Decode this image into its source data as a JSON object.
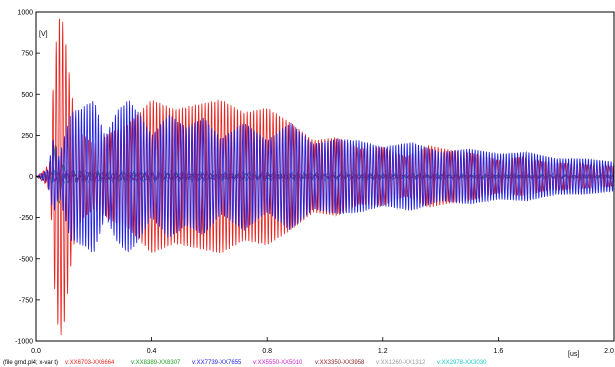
{
  "chart_data": {
    "type": "line",
    "ylabel": "[V]",
    "xlabel": "[us]",
    "xlim": [
      0,
      2
    ],
    "ylim": [
      -1000,
      1000
    ],
    "grid": false,
    "legend_position": "bottom",
    "x_ticks": [
      {
        "value": 0.0,
        "label": "0.0"
      },
      {
        "value": 0.4,
        "label": "0.4"
      },
      {
        "value": 0.8,
        "label": "0.8"
      },
      {
        "value": 1.2,
        "label": "1.2"
      },
      {
        "value": 1.6,
        "label": "1.6"
      },
      {
        "value": 2.0,
        "label": "2.0"
      }
    ],
    "y_ticks": [
      {
        "value": 1000,
        "label": "1000"
      },
      {
        "value": 750,
        "label": "750"
      },
      {
        "value": 500,
        "label": "500"
      },
      {
        "value": 250,
        "label": "250"
      },
      {
        "value": 0,
        "label": "0"
      },
      {
        "value": -250,
        "label": "-250"
      },
      {
        "value": -500,
        "label": "-500"
      },
      {
        "value": -750,
        "label": "-750"
      },
      {
        "value": -1000,
        "label": "-1000"
      }
    ],
    "legend_prefix": "(file grnd.pl4; x-var t)",
    "series": [
      {
        "name": "v:XX6703-XX6664",
        "color": "#e8241f",
        "x": [
          0.0,
          0.03,
          0.05,
          0.06,
          0.07,
          0.08,
          0.09,
          0.1,
          0.11,
          0.12,
          0.13,
          0.14,
          0.16,
          0.2,
          0.26,
          0.32,
          0.4,
          0.48,
          0.56,
          0.64,
          0.72,
          0.8,
          0.88,
          0.96,
          1.04,
          1.12,
          1.2,
          1.28,
          1.36,
          1.44,
          1.52,
          1.6,
          1.68,
          1.76,
          1.84,
          1.92,
          2.0
        ],
        "y": [
          0,
          40,
          100,
          580,
          820,
          980,
          960,
          880,
          700,
          560,
          430,
          330,
          260,
          200,
          270,
          320,
          470,
          410,
          440,
          470,
          390,
          420,
          330,
          220,
          240,
          170,
          180,
          120,
          190,
          160,
          140,
          100,
          120,
          90,
          80,
          70,
          60
        ]
      },
      {
        "name": "v:XX8389-XX8307",
        "color": "#1e9a1e",
        "x": [
          0.0,
          0.05,
          0.07,
          0.1,
          0.2,
          0.6,
          1.2,
          2.0
        ],
        "y": [
          0,
          10,
          230,
          40,
          25,
          15,
          10,
          5
        ]
      },
      {
        "name": "v:XX7739-XX7655",
        "color": "#2020e0",
        "x": [
          0.0,
          0.04,
          0.06,
          0.08,
          0.12,
          0.16,
          0.2,
          0.24,
          0.28,
          0.32,
          0.36,
          0.4,
          0.46,
          0.52,
          0.58,
          0.64,
          0.72,
          0.8,
          0.88,
          0.96,
          1.04,
          1.12,
          1.2,
          1.3,
          1.4,
          1.5,
          1.6,
          1.7,
          1.8,
          1.9,
          2.0
        ],
        "y": [
          0,
          40,
          230,
          120,
          390,
          420,
          470,
          240,
          400,
          470,
          380,
          250,
          380,
          300,
          360,
          230,
          330,
          220,
          330,
          200,
          230,
          220,
          180,
          210,
          150,
          170,
          140,
          150,
          110,
          110,
          90
        ]
      },
      {
        "name": "v:XX5550-XX5010",
        "color": "#d020d0",
        "x": [
          0.0,
          0.06,
          0.2,
          0.6,
          1.0,
          1.4,
          2.0
        ],
        "y": [
          0,
          30,
          25,
          20,
          15,
          12,
          10
        ]
      },
      {
        "name": "v:XX3350-XX3958",
        "color": "#8a1a1a",
        "x": [
          0.0,
          0.06,
          0.2,
          0.6,
          1.0,
          1.4,
          2.0
        ],
        "y": [
          0,
          20,
          18,
          14,
          10,
          8,
          6
        ]
      },
      {
        "name": "v:XX1260-XX1312",
        "color": "#9a9a9a",
        "x": [
          0.0,
          0.06,
          0.2,
          0.6,
          1.0,
          1.4,
          2.0
        ],
        "y": [
          0,
          15,
          12,
          10,
          8,
          6,
          5
        ]
      },
      {
        "name": "v:XX2978-XX3030",
        "color": "#1ec8c8",
        "x": [
          0.0,
          0.06,
          0.2,
          0.6,
          1.0,
          1.4,
          2.0
        ],
        "y": [
          0,
          40,
          35,
          30,
          25,
          20,
          15
        ]
      }
    ]
  }
}
